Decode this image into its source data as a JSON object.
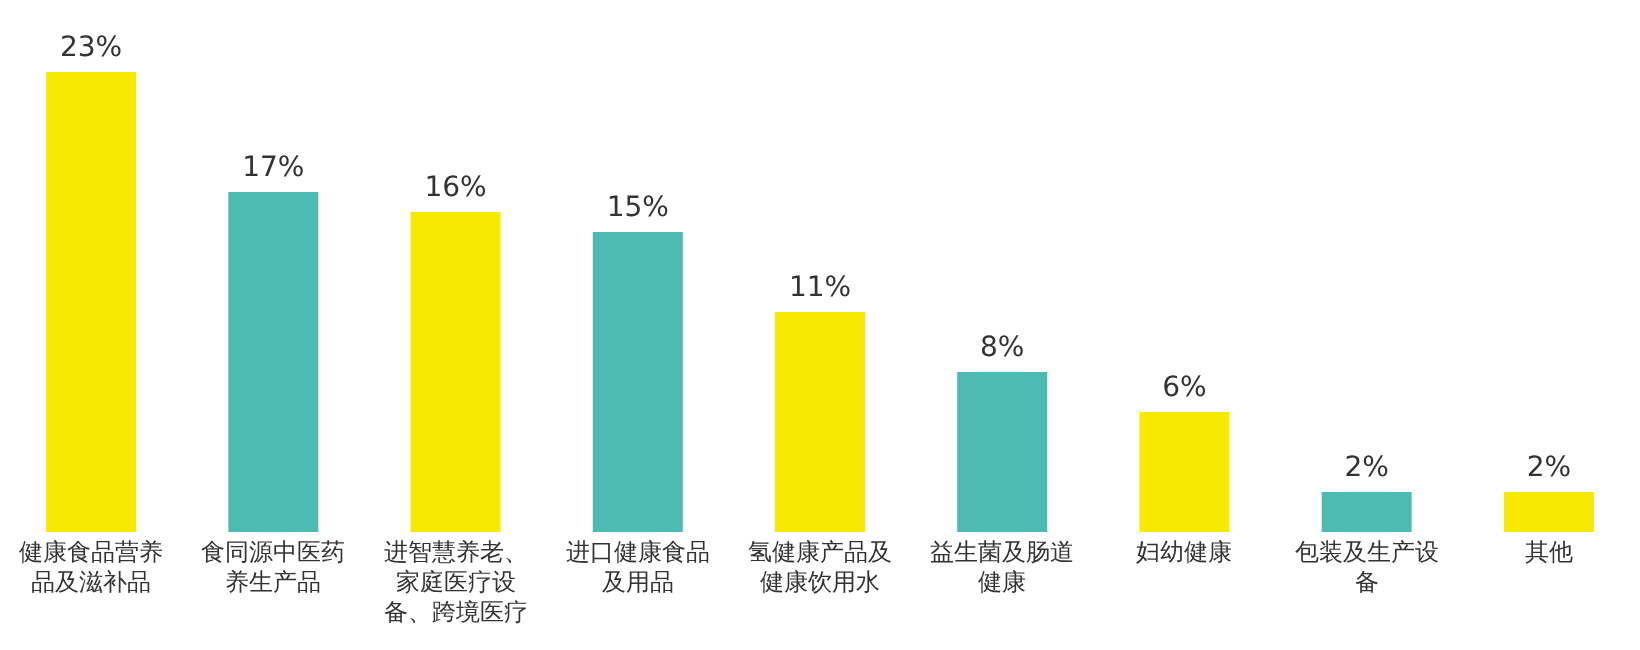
{
  "chart_data": {
    "type": "bar",
    "categories": [
      "健康食品营养品及滋补品",
      "食同源中医药养生产品",
      "进智慧养老、家庭医疗设备、跨境医疗",
      "进口健康食品及用品",
      "氢健康产品及健康饮用水",
      "益生菌及肠道健康",
      "妇幼健康",
      "包装及生产设备",
      "其他"
    ],
    "values": [
      23,
      17,
      16,
      15,
      11,
      8,
      6,
      2,
      2
    ],
    "value_labels": [
      "23%",
      "17%",
      "16%",
      "15%",
      "11%",
      "8%",
      "6%",
      "2%",
      "2%"
    ],
    "colors": [
      "#f7ea00",
      "#4dbbb1",
      "#f7ea00",
      "#4dbbb1",
      "#f7ea00",
      "#4dbbb1",
      "#f7ea00",
      "#4dbbb1",
      "#f7ea00"
    ]
  }
}
